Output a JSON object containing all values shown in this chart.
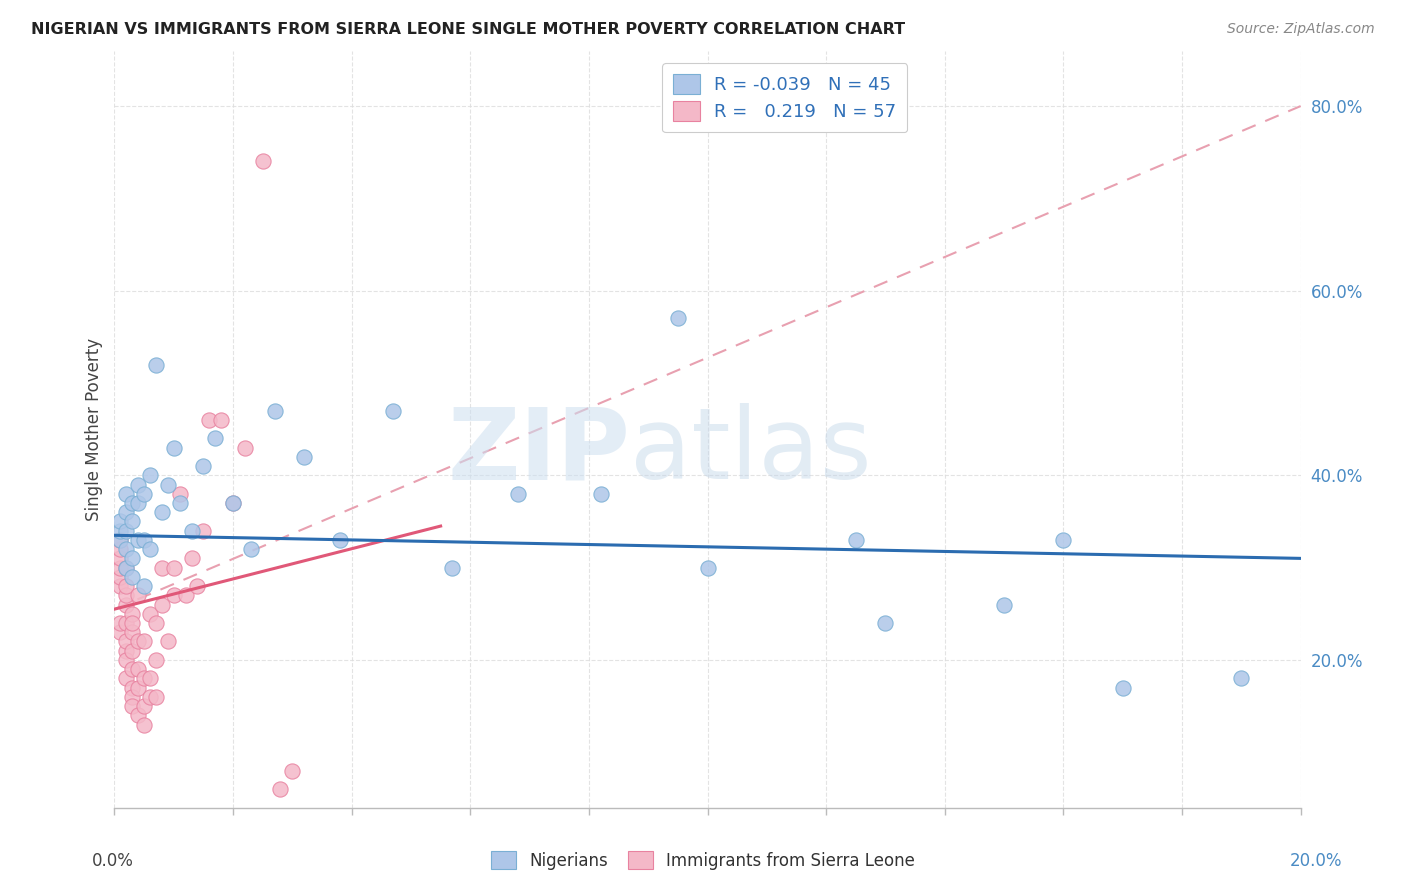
{
  "title": "NIGERIAN VS IMMIGRANTS FROM SIERRA LEONE SINGLE MOTHER POVERTY CORRELATION CHART",
  "source": "Source: ZipAtlas.com",
  "ylabel": "Single Mother Poverty",
  "legend_nigerians": "Nigerians",
  "legend_immigrants": "Immigrants from Sierra Leone",
  "R_nigerians": -0.039,
  "N_nigerians": 45,
  "R_immigrants": 0.219,
  "N_immigrants": 57,
  "blue_color": "#aec6e8",
  "blue_edge_color": "#7aafd4",
  "pink_color": "#f4b8c8",
  "pink_edge_color": "#e882a0",
  "blue_line_color": "#2b6cb0",
  "pink_line_color": "#e05878",
  "pink_dash_color": "#e8a0b0",
  "nigerians_x": [
    0.001,
    0.001,
    0.001,
    0.002,
    0.002,
    0.002,
    0.002,
    0.002,
    0.003,
    0.003,
    0.003,
    0.003,
    0.004,
    0.004,
    0.004,
    0.005,
    0.005,
    0.005,
    0.006,
    0.006,
    0.007,
    0.008,
    0.009,
    0.01,
    0.011,
    0.013,
    0.015,
    0.017,
    0.02,
    0.023,
    0.027,
    0.032,
    0.038,
    0.047,
    0.057,
    0.068,
    0.082,
    0.1,
    0.125,
    0.15,
    0.17,
    0.19,
    0.095,
    0.13,
    0.16
  ],
  "nigerians_y": [
    0.33,
    0.34,
    0.35,
    0.3,
    0.32,
    0.34,
    0.36,
    0.38,
    0.29,
    0.31,
    0.35,
    0.37,
    0.33,
    0.37,
    0.39,
    0.28,
    0.33,
    0.38,
    0.32,
    0.4,
    0.52,
    0.36,
    0.39,
    0.43,
    0.37,
    0.34,
    0.41,
    0.44,
    0.37,
    0.32,
    0.47,
    0.42,
    0.33,
    0.47,
    0.3,
    0.38,
    0.38,
    0.3,
    0.33,
    0.26,
    0.17,
    0.18,
    0.57,
    0.24,
    0.33
  ],
  "immigrants_x": [
    0.001,
    0.001,
    0.001,
    0.001,
    0.001,
    0.001,
    0.001,
    0.001,
    0.002,
    0.002,
    0.002,
    0.002,
    0.002,
    0.002,
    0.002,
    0.002,
    0.002,
    0.003,
    0.003,
    0.003,
    0.003,
    0.003,
    0.003,
    0.003,
    0.003,
    0.004,
    0.004,
    0.004,
    0.004,
    0.004,
    0.005,
    0.005,
    0.005,
    0.005,
    0.006,
    0.006,
    0.006,
    0.007,
    0.007,
    0.007,
    0.008,
    0.008,
    0.009,
    0.01,
    0.01,
    0.011,
    0.012,
    0.013,
    0.014,
    0.015,
    0.016,
    0.018,
    0.02,
    0.022,
    0.025,
    0.028,
    0.03
  ],
  "immigrants_y": [
    0.28,
    0.29,
    0.3,
    0.31,
    0.32,
    0.33,
    0.23,
    0.24,
    0.21,
    0.22,
    0.24,
    0.26,
    0.27,
    0.28,
    0.3,
    0.18,
    0.2,
    0.17,
    0.19,
    0.21,
    0.23,
    0.25,
    0.16,
    0.15,
    0.24,
    0.14,
    0.17,
    0.19,
    0.22,
    0.27,
    0.13,
    0.15,
    0.18,
    0.22,
    0.16,
    0.18,
    0.25,
    0.16,
    0.2,
    0.24,
    0.26,
    0.3,
    0.22,
    0.27,
    0.3,
    0.38,
    0.27,
    0.31,
    0.28,
    0.34,
    0.46,
    0.46,
    0.37,
    0.43,
    0.74,
    0.06,
    0.08
  ],
  "xmin": 0.0,
  "xmax": 0.2,
  "ymin": 0.04,
  "ymax": 0.86,
  "ytick_vals": [
    0.2,
    0.4,
    0.6,
    0.8
  ],
  "ytick_labels": [
    "20.0%",
    "40.0%",
    "60.0%",
    "80.0%"
  ],
  "xlabel_left_label": "0.0%",
  "xlabel_right_label": "20.0%",
  "blue_line_x": [
    0.0,
    0.2
  ],
  "blue_line_y": [
    0.335,
    0.31
  ],
  "pink_solid_line_x": [
    0.0,
    0.055
  ],
  "pink_solid_line_y": [
    0.255,
    0.345
  ],
  "pink_dash_line_x": [
    0.0,
    0.2
  ],
  "pink_dash_line_y": [
    0.255,
    0.8
  ]
}
